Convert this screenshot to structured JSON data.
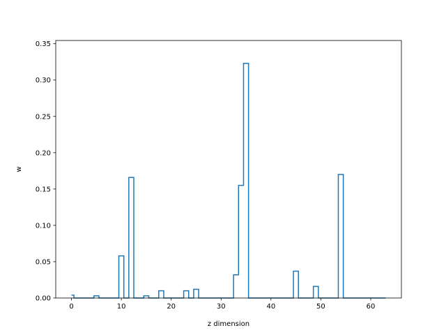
{
  "chart_data": {
    "type": "step",
    "xlabel": "z dimension",
    "ylabel": "w",
    "xlim": [
      -3.15,
      66.15
    ],
    "ylim": [
      0,
      0.3545
    ],
    "xticks": [
      0,
      10,
      20,
      30,
      40,
      50,
      60
    ],
    "xtick_labels": [
      "0",
      "10",
      "20",
      "30",
      "40",
      "50",
      "60"
    ],
    "yticks": [
      0.0,
      0.05,
      0.1,
      0.15,
      0.2,
      0.25,
      0.3,
      0.35
    ],
    "ytick_labels": [
      "0.00",
      "0.05",
      "0.10",
      "0.15",
      "0.20",
      "0.25",
      "0.30",
      "0.35"
    ],
    "grid": false,
    "line_color": "#1f77b4",
    "x": [
      0,
      1,
      2,
      3,
      4,
      5,
      6,
      7,
      8,
      9,
      10,
      11,
      12,
      13,
      14,
      15,
      16,
      17,
      18,
      19,
      20,
      21,
      22,
      23,
      24,
      25,
      26,
      27,
      28,
      29,
      30,
      31,
      32,
      33,
      34,
      35,
      36,
      37,
      38,
      39,
      40,
      41,
      42,
      43,
      44,
      45,
      46,
      47,
      48,
      49,
      50,
      51,
      52,
      53,
      54,
      55,
      56,
      57,
      58,
      59,
      60,
      61,
      62,
      63
    ],
    "values": [
      0.004,
      0,
      0,
      0,
      0,
      0.003,
      0,
      0,
      0,
      0,
      0.058,
      0,
      0.166,
      0,
      0,
      0.003,
      0,
      0,
      0.01,
      0,
      0,
      0,
      0,
      0.01,
      0,
      0.012,
      0,
      0,
      0,
      0,
      0,
      0,
      0,
      0.032,
      0.155,
      0.323,
      0,
      0,
      0,
      0,
      0,
      0,
      0,
      0,
      0,
      0.037,
      0,
      0,
      0,
      0.016,
      0,
      0,
      0,
      0,
      0.17,
      0,
      0,
      0,
      0,
      0,
      0,
      0,
      0,
      0
    ]
  }
}
